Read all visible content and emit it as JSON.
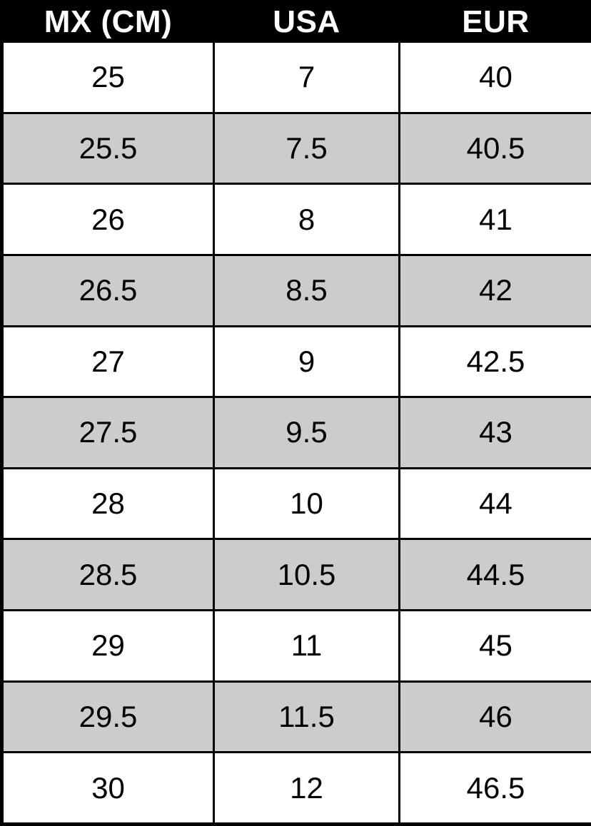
{
  "table": {
    "headers": [
      "MX (CM)",
      "USA",
      "EUR"
    ],
    "rows": [
      [
        "25",
        "7",
        "40"
      ],
      [
        "25.5",
        "7.5",
        "40.5"
      ],
      [
        "26",
        "8",
        "41"
      ],
      [
        "26.5",
        "8.5",
        "42"
      ],
      [
        "27",
        "9",
        "42.5"
      ],
      [
        "27.5",
        "9.5",
        "43"
      ],
      [
        "28",
        "10",
        "44"
      ],
      [
        "28.5",
        "10.5",
        "44.5"
      ],
      [
        "29",
        "11",
        "45"
      ],
      [
        "29.5",
        "11.5",
        "46"
      ],
      [
        "30",
        "12",
        "46.5"
      ]
    ]
  },
  "colors": {
    "header_bg": "#000000",
    "header_text": "#ffffff",
    "row_alt_bg": "#cccccc",
    "row_bg": "#ffffff",
    "border": "#000000",
    "cell_text": "#000000"
  },
  "chart_data": {
    "type": "table",
    "title": "",
    "columns": [
      "MX (CM)",
      "USA",
      "EUR"
    ],
    "rows": [
      [
        25,
        7,
        40
      ],
      [
        25.5,
        7.5,
        40.5
      ],
      [
        26,
        8,
        41
      ],
      [
        26.5,
        8.5,
        42
      ],
      [
        27,
        9,
        42.5
      ],
      [
        27.5,
        9.5,
        43
      ],
      [
        28,
        10,
        44
      ],
      [
        28.5,
        10.5,
        44.5
      ],
      [
        29,
        11,
        45
      ],
      [
        29.5,
        11.5,
        46
      ],
      [
        30,
        12,
        46.5
      ]
    ],
    "layout_hints": {
      "header_style": "black background, white bold text",
      "zebra_striping": "alternating white and light gray rows starting with white",
      "grid": "solid black borders on all cells"
    }
  }
}
